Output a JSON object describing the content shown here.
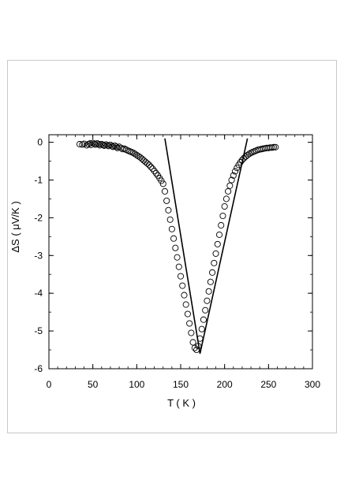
{
  "chart_data": {
    "type": "scatter",
    "title": "",
    "xlabel": "T ( K )",
    "ylabel": "ΔS ( μV/K )",
    "xlim": [
      0,
      300
    ],
    "ylim": [
      -6,
      0.2
    ],
    "xticks": [
      0,
      50,
      100,
      150,
      200,
      250,
      300
    ],
    "yticks": [
      0,
      -1,
      -2,
      -3,
      -4,
      -5,
      -6
    ],
    "grid": false,
    "legend": "none",
    "series": [
      {
        "marker": "open-circle",
        "x": [
          35,
          38,
          40,
          43,
          45,
          47,
          48,
          50,
          52,
          53,
          55,
          57,
          58,
          60,
          62,
          63,
          65,
          67,
          68,
          70,
          72,
          73,
          75,
          77,
          78,
          80,
          82,
          84,
          86,
          88,
          90,
          92,
          94,
          96,
          98,
          100,
          102,
          104,
          106,
          108,
          110,
          112,
          114,
          116,
          118,
          120,
          122,
          124,
          126,
          128,
          130,
          132,
          134,
          136,
          138,
          140,
          142,
          144,
          146,
          148,
          150,
          152,
          154,
          156,
          158,
          160,
          162,
          164,
          166,
          168,
          170,
          172,
          174,
          176,
          178,
          180,
          182,
          184,
          186,
          188,
          190,
          192,
          194,
          196,
          198,
          200,
          202,
          204,
          206,
          208,
          210,
          212,
          214,
          216,
          218,
          220,
          222,
          224,
          226,
          228,
          230,
          232,
          234,
          236,
          238,
          240,
          242,
          244,
          246,
          248,
          250,
          252,
          254,
          256,
          258
        ],
        "y": [
          -0.05,
          -0.06,
          -0.04,
          -0.08,
          -0.05,
          -0.03,
          -0.07,
          -0.02,
          -0.04,
          -0.06,
          -0.03,
          -0.05,
          -0.08,
          -0.05,
          -0.07,
          -0.09,
          -0.06,
          -0.08,
          -0.1,
          -0.07,
          -0.1,
          -0.12,
          -0.09,
          -0.12,
          -0.15,
          -0.12,
          -0.15,
          -0.18,
          -0.17,
          -0.2,
          -0.22,
          -0.24,
          -0.26,
          -0.28,
          -0.31,
          -0.34,
          -0.37,
          -0.4,
          -0.44,
          -0.48,
          -0.52,
          -0.56,
          -0.6,
          -0.65,
          -0.7,
          -0.76,
          -0.82,
          -0.88,
          -0.95,
          -1.02,
          -1.1,
          -1.3,
          -1.55,
          -1.8,
          -2.05,
          -2.3,
          -2.55,
          -2.8,
          -3.05,
          -3.3,
          -3.55,
          -3.8,
          -4.05,
          -4.3,
          -4.55,
          -4.8,
          -5.05,
          -5.3,
          -5.45,
          -5.5,
          -5.4,
          -5.2,
          -4.95,
          -4.7,
          -4.45,
          -4.2,
          -3.95,
          -3.7,
          -3.45,
          -3.2,
          -2.95,
          -2.7,
          -2.45,
          -2.2,
          -1.95,
          -1.7,
          -1.5,
          -1.3,
          -1.15,
          -1.0,
          -0.88,
          -0.77,
          -0.68,
          -0.6,
          -0.53,
          -0.47,
          -0.42,
          -0.38,
          -0.34,
          -0.31,
          -0.28,
          -0.26,
          -0.24,
          -0.22,
          -0.2,
          -0.19,
          -0.18,
          -0.17,
          -0.16,
          -0.15,
          -0.15,
          -0.14,
          -0.14,
          -0.13,
          -0.13
        ]
      }
    ],
    "fit_lines": [
      {
        "x": [
          132,
          172
        ],
        "y": [
          0.1,
          -5.6
        ]
      },
      {
        "x": [
          172,
          226
        ],
        "y": [
          -5.6,
          0.1
        ]
      }
    ]
  }
}
